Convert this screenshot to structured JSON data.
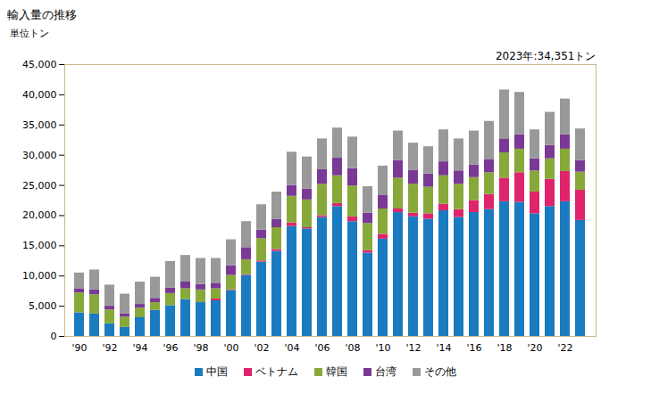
{
  "chart_data": {
    "type": "bar",
    "stacked": true,
    "title": "輸入量の推移",
    "y_label": "単位トン",
    "annotation": "2023年:34,351トン",
    "categories": [
      "'90",
      null,
      "'92",
      null,
      "'94",
      null,
      "'96",
      null,
      "'98",
      null,
      "'00",
      null,
      "'02",
      null,
      "'04",
      null,
      "'06",
      null,
      "'08",
      null,
      "'10",
      null,
      "'12",
      null,
      "'14",
      null,
      "'16",
      null,
      "'18",
      null,
      "'20",
      null,
      "'22",
      null
    ],
    "series": [
      {
        "name": "中国",
        "color": "#1a7bc0",
        "values": [
          3900,
          3700,
          2100,
          1500,
          3100,
          4300,
          5100,
          6100,
          5600,
          5900,
          7600,
          10100,
          12300,
          14100,
          18200,
          17800,
          19700,
          21500,
          19000,
          13800,
          16100,
          20500,
          19800,
          19400,
          20800,
          19700,
          20500,
          21000,
          22300,
          22200,
          20300,
          21500,
          22300,
          19200
        ]
      },
      {
        "name": "ベトナム",
        "color": "#e0246b",
        "values": [
          0,
          0,
          0,
          0,
          0,
          0,
          0,
          0,
          0,
          300,
          100,
          100,
          200,
          300,
          600,
          200,
          300,
          500,
          800,
          400,
          800,
          600,
          600,
          900,
          1100,
          1300,
          2000,
          2500,
          3900,
          4900,
          3600,
          4500,
          5000,
          5000
        ]
      },
      {
        "name": "韓国",
        "color": "#87a93a",
        "values": [
          3300,
          3200,
          2300,
          1700,
          1600,
          1300,
          2000,
          1800,
          2100,
          1700,
          2400,
          2500,
          3700,
          3600,
          4400,
          4600,
          5200,
          4600,
          5100,
          4500,
          4200,
          5100,
          4800,
          4400,
          4700,
          4200,
          3800,
          3600,
          4200,
          3900,
          3500,
          3400,
          3700,
          3000
        ]
      },
      {
        "name": "台湾",
        "color": "#7a3995",
        "values": [
          700,
          800,
          600,
          500,
          600,
          700,
          900,
          1100,
          900,
          900,
          1600,
          2000,
          1400,
          1400,
          1800,
          1800,
          2400,
          2900,
          2900,
          1700,
          2300,
          2900,
          2300,
          2200,
          2300,
          2200,
          2100,
          2200,
          2300,
          2400,
          2000,
          2200,
          2400,
          1900
        ]
      },
      {
        "name": "その他",
        "color": "#999999",
        "values": [
          2600,
          3300,
          3500,
          3300,
          3700,
          3500,
          4400,
          4400,
          4300,
          4100,
          4300,
          4300,
          4200,
          4500,
          5500,
          5300,
          5100,
          5000,
          5200,
          4400,
          4800,
          4900,
          4500,
          4500,
          5300,
          5300,
          5600,
          6300,
          8100,
          7000,
          4800,
          5500,
          5900,
          5251
        ]
      }
    ],
    "ylim": [
      0,
      45000
    ],
    "yticks": [
      0,
      {
        "value": 5000,
        "label": "5,000"
      },
      {
        "value": 10000,
        "label": "10,000"
      },
      {
        "value": 15000,
        "label": "15,000"
      },
      {
        "value": 20000,
        "label": "20,000"
      },
      {
        "value": 25000,
        "label": "25,000"
      },
      {
        "value": 30000,
        "label": "30,000"
      },
      {
        "value": 35000,
        "label": "35,000"
      },
      {
        "value": 40000,
        "label": "40,000"
      },
      {
        "value": 45000,
        "label": "45,000"
      }
    ],
    "grid": false,
    "legend": "bottom"
  }
}
